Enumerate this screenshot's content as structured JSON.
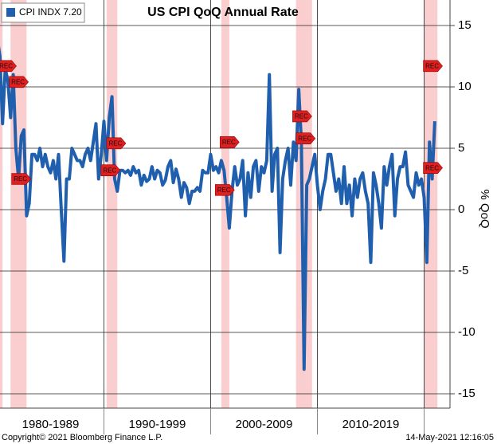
{
  "chart_data": {
    "type": "line",
    "title": "US CPI QoQ Annual Rate",
    "y_label": "% QoQ",
    "legend_label": "CPI INDX 7.20",
    "series": [
      {
        "name": "CPI INDX",
        "color": "#1f5fae",
        "values": [
          14,
          12.5,
          7,
          11.5,
          10.5,
          7.5,
          11,
          5,
          2.5,
          6,
          6.5,
          -0.5,
          0.5,
          4.5,
          4.5,
          4,
          5,
          3.5,
          4.5,
          3.5,
          3,
          4,
          2.5,
          4.5,
          0,
          -4.2,
          2.5,
          2.5,
          5,
          4.5,
          4,
          4,
          3.5,
          4.5,
          5,
          4,
          5.5,
          7,
          2.5,
          4.5,
          7.2,
          4,
          7.5,
          9.2,
          2.5,
          1.5,
          3.2,
          3.2,
          3,
          3.2,
          2.8,
          3.5,
          3,
          3.2,
          2,
          2.8,
          2.3,
          2.5,
          3.5,
          2.5,
          3.2,
          3,
          2,
          2.4,
          3.5,
          4,
          2.2,
          3.3,
          2.5,
          1,
          2.2,
          1.8,
          0.5,
          1.5,
          1.5,
          1.8,
          1.5,
          3.2,
          3,
          3,
          4.5,
          3.2,
          3.5,
          3,
          4,
          3.2,
          1,
          -1.5,
          1.5,
          3.5,
          2,
          2.5,
          4,
          -0.5,
          3,
          1,
          3.5,
          4,
          1.5,
          3.5,
          3,
          4,
          11,
          1.5,
          4.5,
          5,
          -3.5,
          2.5,
          4,
          5,
          2,
          5.5,
          4,
          9.8,
          5.5,
          -13,
          2,
          2.5,
          3.5,
          4.5,
          2,
          0,
          1.5,
          2.5,
          4.5,
          4.5,
          3,
          1.5,
          2.5,
          0.5,
          3.5,
          0.5,
          2,
          -0.5,
          2.5,
          1,
          2.5,
          3,
          1.5,
          0.5,
          -4.3,
          3,
          2,
          0.5,
          -1.5,
          3.5,
          2,
          3.5,
          4.5,
          -0.5,
          2.5,
          3.5,
          3.5,
          4.7,
          2,
          1.5,
          1,
          3,
          2,
          2.5,
          1,
          -4.3,
          5.5,
          2.5,
          7.2
        ]
      }
    ],
    "ylim": [
      -16.17,
      17.08
    ],
    "yticks": [
      15,
      10,
      5,
      0,
      -5,
      -10,
      -15
    ],
    "grid": true,
    "period_labels": [
      "1980-1989",
      "1990-1999",
      "2000-2009",
      "2010-2019"
    ],
    "period_breaks": [
      40,
      80,
      120,
      160
    ],
    "recessions": [
      [
        0,
        2
      ],
      [
        5,
        11
      ],
      [
        41,
        45
      ],
      [
        84,
        87
      ],
      [
        112,
        118
      ],
      [
        160,
        165
      ]
    ],
    "annotations": [
      {
        "text": "REC",
        "x": 3.3,
        "y": 11.7
      },
      {
        "text": "REC",
        "x": 7.8,
        "y": 10.4
      },
      {
        "text": "REC",
        "x": 8.7,
        "y": 2.5
      },
      {
        "text": "REC",
        "x": 44.3,
        "y": 5.4
      },
      {
        "text": "REC",
        "x": 42.2,
        "y": 3.2
      },
      {
        "text": "REC",
        "x": 86.8,
        "y": 5.5
      },
      {
        "text": "REC",
        "x": 85,
        "y": 1.6
      },
      {
        "text": "REC",
        "x": 114,
        "y": 7.6
      },
      {
        "text": "REC",
        "x": 115.3,
        "y": 5.8
      },
      {
        "text": "REC",
        "x": 163,
        "y": 11.7
      },
      {
        "text": "REC",
        "x": 163,
        "y": 3.4
      }
    ],
    "footer_left": "Copyright© 2021 Bloomberg Finance L.P.",
    "footer_right": "14-May-2021 12:16:05"
  }
}
